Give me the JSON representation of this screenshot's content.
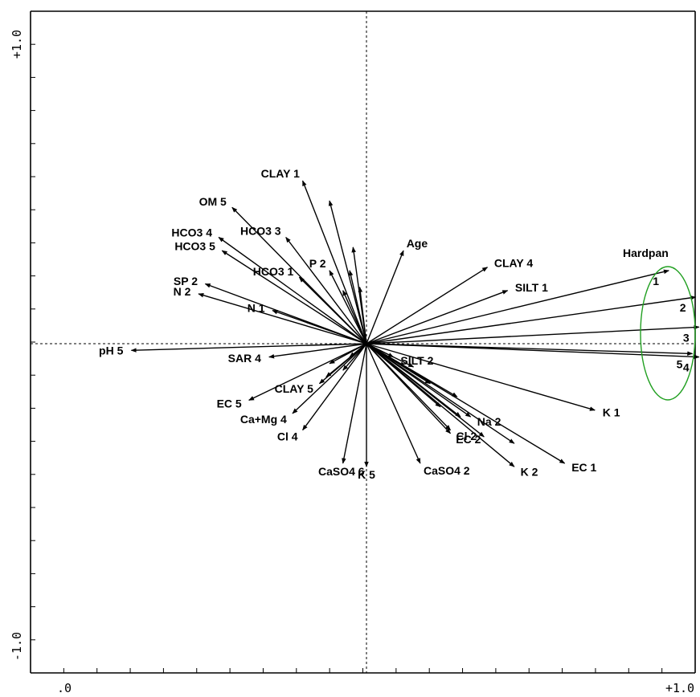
{
  "chart_data": {
    "type": "scatter",
    "style": "biplot-vectors",
    "title": "",
    "xlabel": "",
    "ylabel": "",
    "xlim": [
      -1.0,
      1.0
    ],
    "ylim": [
      -1.0,
      1.0
    ],
    "x_tick_labels": [
      ".0",
      "+1.0"
    ],
    "y_tick_labels": [
      "+1.0",
      "-1.0"
    ],
    "grid": false,
    "zero_lines": "dashed",
    "vectors": [
      {
        "label": "CLAY 1",
        "x": -0.19,
        "y": 0.49
      },
      {
        "label": "OM 5",
        "x": -0.4,
        "y": 0.41
      },
      {
        "label": "HCO3 3",
        "x": -0.24,
        "y": 0.32
      },
      {
        "label": "HCO3 4",
        "x": -0.44,
        "y": 0.32
      },
      {
        "label": "HCO3 5",
        "x": -0.43,
        "y": 0.28
      },
      {
        "label": "HCO3 1",
        "x": -0.2,
        "y": 0.2
      },
      {
        "label": "P 2",
        "x": -0.11,
        "y": 0.22
      },
      {
        "label": "Age",
        "x": 0.11,
        "y": 0.28
      },
      {
        "label": "CLAY 4",
        "x": 0.36,
        "y": 0.23
      },
      {
        "label": "SILT 1",
        "x": 0.42,
        "y": 0.16
      },
      {
        "label": "SP 2",
        "x": -0.48,
        "y": 0.18
      },
      {
        "label": "N 2",
        "x": -0.5,
        "y": 0.15
      },
      {
        "label": "N 1",
        "x": -0.28,
        "y": 0.1
      },
      {
        "label": "pH 5",
        "x": -0.7,
        "y": -0.02
      },
      {
        "label": "SAR 4",
        "x": -0.29,
        "y": -0.04
      },
      {
        "label": "EC 5",
        "x": -0.35,
        "y": -0.17
      },
      {
        "label": "CLAY 5",
        "x": -0.14,
        "y": -0.12
      },
      {
        "label": "Ca+Mg 4",
        "x": -0.22,
        "y": -0.21
      },
      {
        "label": "Cl 4",
        "x": -0.19,
        "y": -0.26
      },
      {
        "label": "CaSO4 6",
        "x": -0.07,
        "y": -0.36
      },
      {
        "label": "K 5",
        "x": 0.0,
        "y": -0.37
      },
      {
        "label": "CaSO4 2",
        "x": 0.16,
        "y": -0.36
      },
      {
        "label": "SILT 2",
        "x": 0.08,
        "y": -0.04
      },
      {
        "label": "Cl 2",
        "x": 0.25,
        "y": -0.26
      },
      {
        "label": "EC 2",
        "x": 0.25,
        "y": -0.27
      },
      {
        "label": "Na 2",
        "x": 0.31,
        "y": -0.22
      },
      {
        "label": "K 2",
        "x": 0.44,
        "y": -0.37
      },
      {
        "label": "EC 1",
        "x": 0.59,
        "y": -0.36
      },
      {
        "label": "K 1",
        "x": 0.68,
        "y": -0.2
      },
      {
        "label": "1",
        "x": 0.9,
        "y": 0.22
      },
      {
        "label": "2",
        "x": 0.98,
        "y": 0.14
      },
      {
        "label": "3",
        "x": 0.99,
        "y": 0.05
      },
      {
        "label": "4",
        "x": 0.99,
        "y": -0.04
      },
      {
        "label": "5",
        "x": 0.97,
        "y": -0.03
      }
    ],
    "extra_vectors": [
      {
        "x": -0.11,
        "y": 0.43
      },
      {
        "x": -0.04,
        "y": 0.29
      },
      {
        "x": -0.05,
        "y": 0.22
      },
      {
        "x": -0.02,
        "y": 0.17
      },
      {
        "x": -0.07,
        "y": 0.16
      },
      {
        "x": -0.11,
        "y": -0.06
      },
      {
        "x": -0.12,
        "y": -0.1
      },
      {
        "x": -0.07,
        "y": -0.08
      },
      {
        "x": -0.05,
        "y": -0.04
      },
      {
        "x": 0.14,
        "y": -0.07
      },
      {
        "x": 0.19,
        "y": -0.12
      },
      {
        "x": 0.22,
        "y": -0.19
      },
      {
        "x": 0.27,
        "y": -0.16
      },
      {
        "x": 0.28,
        "y": -0.22
      },
      {
        "x": 0.35,
        "y": -0.28
      },
      {
        "x": 0.44,
        "y": -0.3
      }
    ],
    "annotation": {
      "label": "Hardpan",
      "shape": "ellipse",
      "color": "#22a022"
    }
  }
}
